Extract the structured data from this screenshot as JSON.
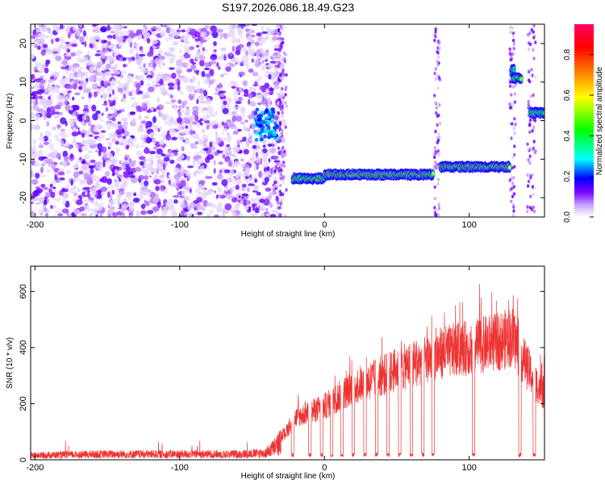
{
  "title": "S197.2026.086.18.49.G23",
  "chart_data": [
    {
      "type": "heatmap",
      "name": "spectrogram",
      "xlabel": "Height of straight line (km)",
      "ylabel": "Frequency (Hz)",
      "xlim": [
        -203,
        152
      ],
      "ylim": [
        -25,
        25
      ],
      "x_ticks": [
        -200,
        -100,
        0,
        100
      ],
      "y_ticks": [
        -20,
        -10,
        0,
        10,
        20
      ],
      "colorbar": {
        "label": "Normalized spectral amplitude",
        "range": [
          0,
          0.95
        ],
        "ticks": [
          0.0,
          0.2,
          0.4,
          0.6,
          0.8
        ],
        "colors": [
          "#ffffff",
          "#7b00ff",
          "#0000ff",
          "#00ffff",
          "#00ff00",
          "#ffff00",
          "#ff8000",
          "#ff0000",
          "#ff0066"
        ]
      },
      "features": [
        {
          "x_range": [
            -203,
            -30
          ],
          "freq": "noise",
          "amplitude": 0.1
        },
        {
          "x_range": [
            -48,
            -32
          ],
          "freq": [
            -4,
            2
          ],
          "amplitude": 0.25
        },
        {
          "x_range": [
            -22,
            0
          ],
          "freq": -15,
          "amplitude": 0.6
        },
        {
          "x_range": [
            0,
            75
          ],
          "freq": -14,
          "amplitude": 0.75
        },
        {
          "x_range": [
            80,
            128
          ],
          "freq": -12,
          "amplitude": 0.8
        },
        {
          "x_range": [
            130,
            136
          ],
          "freq": 11,
          "amplitude": 0.6
        },
        {
          "x_range": [
            142,
            152
          ],
          "freq": 2,
          "amplitude": 0.6
        }
      ],
      "grid": false
    },
    {
      "type": "line",
      "name": "snr",
      "xlabel": "Height of straight line (km)",
      "ylabel": "SNR (10 * v/v)",
      "xlim": [
        -203,
        152
      ],
      "ylim": [
        0,
        690
      ],
      "x_ticks": [
        -200,
        -100,
        0,
        100
      ],
      "y_ticks": [
        0,
        200,
        400,
        600
      ],
      "color": "#ee3333",
      "series": [
        {
          "x": [
            -200,
            -150,
            -100,
            -60,
            -40,
            -28,
            -20,
            -10,
            0,
            20,
            40,
            60,
            80,
            100,
            120,
            130,
            140,
            150
          ],
          "values": [
            20,
            25,
            25,
            25,
            30,
            90,
            150,
            170,
            190,
            260,
            300,
            340,
            380,
            400,
            420,
            440,
            330,
            240
          ]
        }
      ],
      "dropouts_x": [
        -22,
        -10,
        -2,
        5,
        12,
        20,
        28,
        36,
        44,
        52,
        60,
        68,
        75,
        103,
        135,
        145
      ],
      "grid": false
    }
  ]
}
